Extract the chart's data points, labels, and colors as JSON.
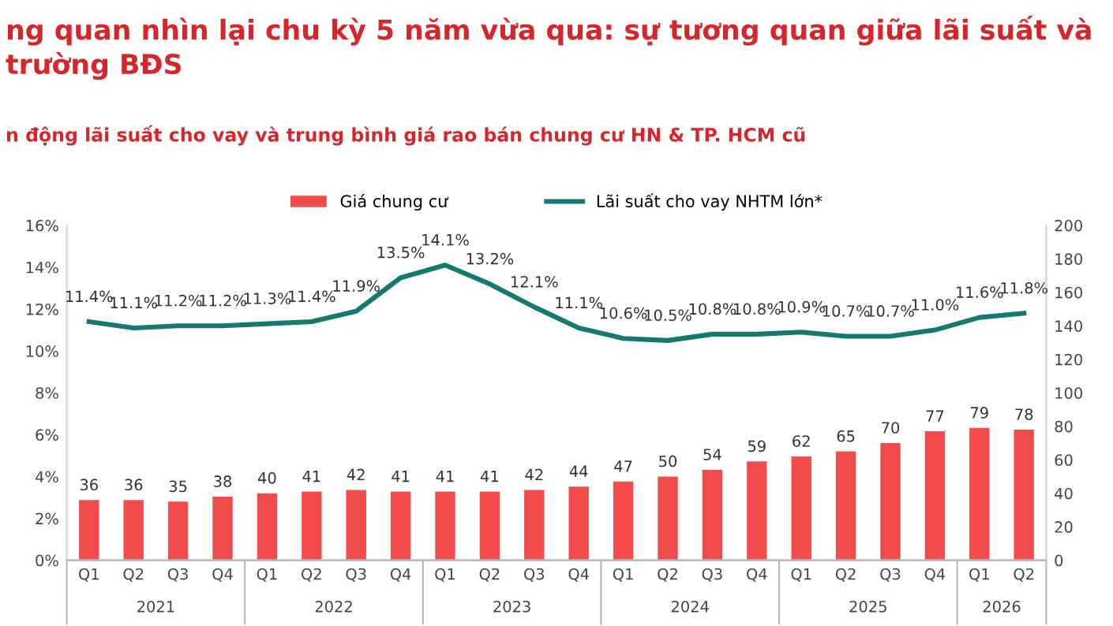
{
  "chart_data": {
    "type": "bar",
    "title": "ng quan nhìn lại chu kỳ 5 năm vừa qua: sự tương quan giữa lãi suất và\ntrường BĐS",
    "subtitle": "n động lãi suất cho vay và trung bình giá rao bán chung cư HN & TP. HCM cũ",
    "categories": [
      "Q1",
      "Q2",
      "Q3",
      "Q4",
      "Q1",
      "Q2",
      "Q3",
      "Q4",
      "Q1",
      "Q2",
      "Q3",
      "Q4",
      "Q1",
      "Q2",
      "Q3",
      "Q4",
      "Q1",
      "Q2",
      "Q3",
      "Q4",
      "Q1",
      "Q2"
    ],
    "annotations": [
      "2021",
      "2022",
      "2023",
      "2024",
      "2025",
      "2026"
    ],
    "series": [
      {
        "name": "Giá chung cư",
        "axis": "y2",
        "color": "#f24b4b",
        "values": [
          36,
          36,
          35,
          38,
          40,
          41,
          42,
          41,
          41,
          41,
          42,
          44,
          47,
          50,
          54,
          59,
          62,
          65,
          70,
          77,
          79,
          78
        ]
      },
      {
        "name": "Lãi suất cho vay NHTM lớn*",
        "type": "line",
        "axis": "y",
        "color": "#147a6f",
        "values": [
          11.4,
          11.1,
          11.2,
          11.2,
          11.3,
          11.4,
          11.9,
          13.5,
          14.1,
          13.2,
          12.1,
          11.1,
          10.6,
          10.5,
          10.8,
          10.8,
          10.9,
          10.7,
          10.7,
          11.0,
          11.6,
          11.8
        ],
        "value_labels": [
          "11.4%",
          "11.1%",
          "11.2%",
          "11.2%",
          "11.3%",
          "11.4%",
          "11.9%",
          "13.5%",
          "14.1%",
          "13.2%",
          "12.1%",
          "11.1%",
          "10.6%",
          "10.5%",
          "10.8%",
          "10.8%",
          "10.9%",
          "10.7%",
          "10.7%",
          "11.0%",
          "11.6%",
          "11.8%"
        ]
      }
    ],
    "ylim": [
      0,
      16
    ],
    "yticks": [
      {
        "value": 0,
        "label": "0%"
      },
      {
        "value": 2,
        "label": "2%"
      },
      {
        "value": 4,
        "label": "4%"
      },
      {
        "value": 6,
        "label": "6%"
      },
      {
        "value": 8,
        "label": "8%"
      },
      {
        "value": 10,
        "label": "10%"
      },
      {
        "value": 12,
        "label": "12%"
      },
      {
        "value": 14,
        "label": "14%"
      },
      {
        "value": 16,
        "label": "16%"
      }
    ],
    "y2lim": [
      0,
      200
    ],
    "y2ticks": [
      0,
      20,
      40,
      60,
      80,
      100,
      120,
      140,
      160,
      180,
      200
    ],
    "data_labels": true,
    "legend": "top",
    "grid": false,
    "line_style": "solid",
    "marker": "none"
  }
}
